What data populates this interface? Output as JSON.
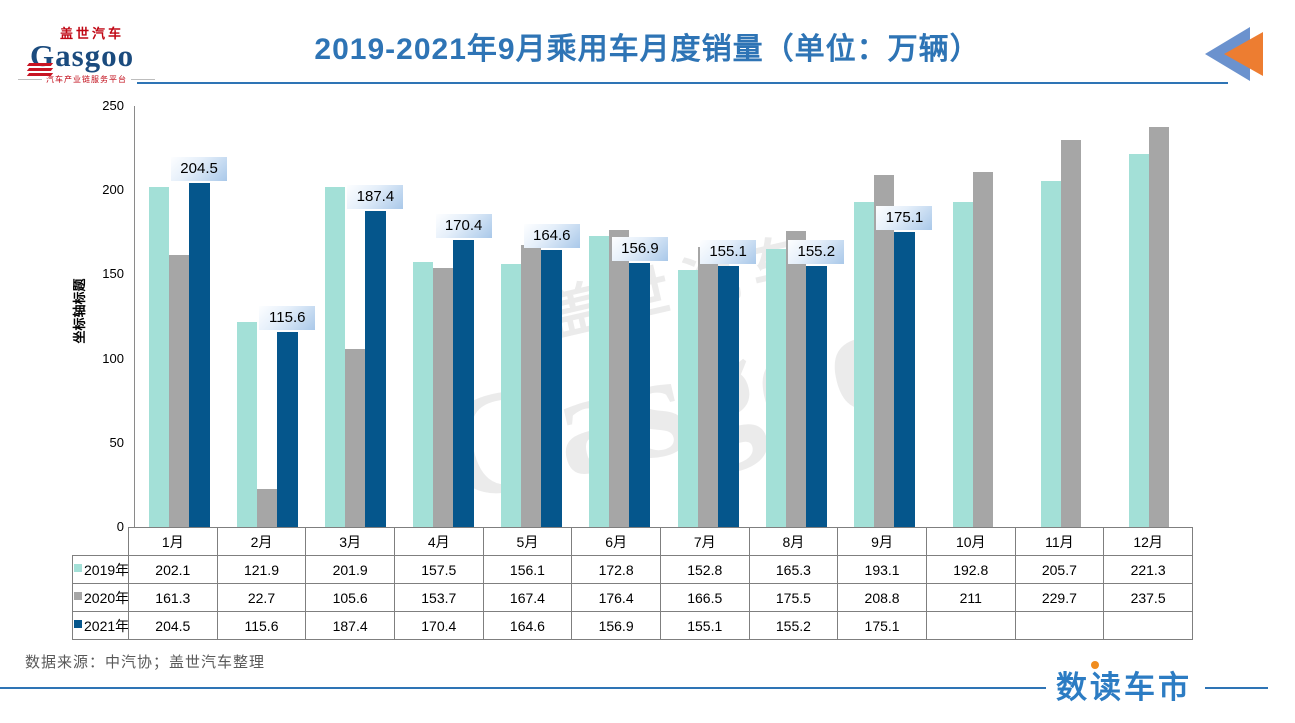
{
  "header": {
    "logo": {
      "cn": "盖世汽车",
      "en": "Gasgoo",
      "tagline": "汽车产业链服务平台"
    },
    "arrow_icon": {
      "blue": "#6B92CE",
      "orange": "#ED7D31"
    }
  },
  "chart_data": {
    "type": "bar",
    "title": "2019-2021年9月乘用车月度销量（单位：万辆）",
    "xlabel": "",
    "ylabel": "坐标轴标题",
    "ylim": [
      0,
      250
    ],
    "yticks": [
      0,
      50,
      100,
      150,
      200,
      250
    ],
    "grid": false,
    "legend_position": "table-left",
    "categories": [
      "1月",
      "2月",
      "3月",
      "4月",
      "5月",
      "6月",
      "7月",
      "8月",
      "9月",
      "10月",
      "11月",
      "12月"
    ],
    "series": [
      {
        "name": "2019年",
        "color": "#A3E0D7",
        "values": [
          202.1,
          121.9,
          201.9,
          157.5,
          156.1,
          172.8,
          152.8,
          165.3,
          193.1,
          192.8,
          205.7,
          221.3
        ]
      },
      {
        "name": "2020年",
        "color": "#A6A6A6",
        "values": [
          161.3,
          22.7,
          105.6,
          153.7,
          167.4,
          176.4,
          166.5,
          175.5,
          208.8,
          211,
          229.7,
          237.5
        ]
      },
      {
        "name": "2021年",
        "color": "#05568C",
        "data_labels": true,
        "values": [
          204.5,
          115.6,
          187.4,
          170.4,
          164.6,
          156.9,
          155.1,
          155.2,
          175.1,
          null,
          null,
          null
        ]
      }
    ]
  },
  "watermark": {
    "cn": "盖世汽车",
    "en": "Gasgoo"
  },
  "footer": {
    "source": "数据来源：中汽协；盖世汽车整理",
    "brand": "数读车市"
  },
  "colors": {
    "title_blue": "#2E74B5",
    "label_bg_blue": "#A9C8E9",
    "brand_blue": "#2C7CC3",
    "brand_orange": "#F08C1E"
  }
}
